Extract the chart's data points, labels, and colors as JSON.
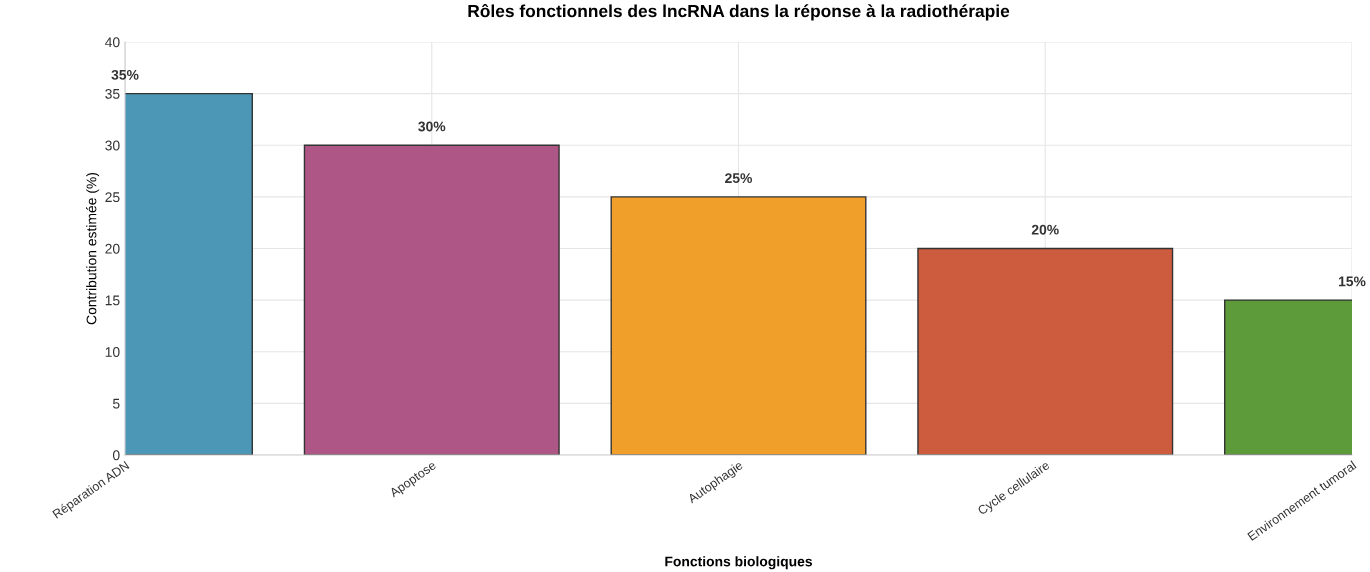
{
  "chart_data": {
    "type": "bar",
    "title": "Rôles fonctionnels des lncRNA dans la réponse à la radiothérapie",
    "xlabel": "Fonctions biologiques",
    "ylabel": "Contribution estimée (%)",
    "categories": [
      "Réparation ADN",
      "Apoptose",
      "Autophagie",
      "Cycle cellulaire",
      "Environnement tumoral"
    ],
    "values": [
      35,
      30,
      25,
      20,
      15
    ],
    "colors": [
      "#4c96b6",
      "#ae5786",
      "#f0a02a",
      "#cd5b3d",
      "#5c9a3a"
    ],
    "value_labels": [
      "35%",
      "30%",
      "25%",
      "20%",
      "15%"
    ],
    "ylim": [
      0,
      40
    ],
    "yticks": [
      0,
      5,
      10,
      15,
      20,
      25,
      30,
      35,
      40
    ],
    "grid": true
  }
}
